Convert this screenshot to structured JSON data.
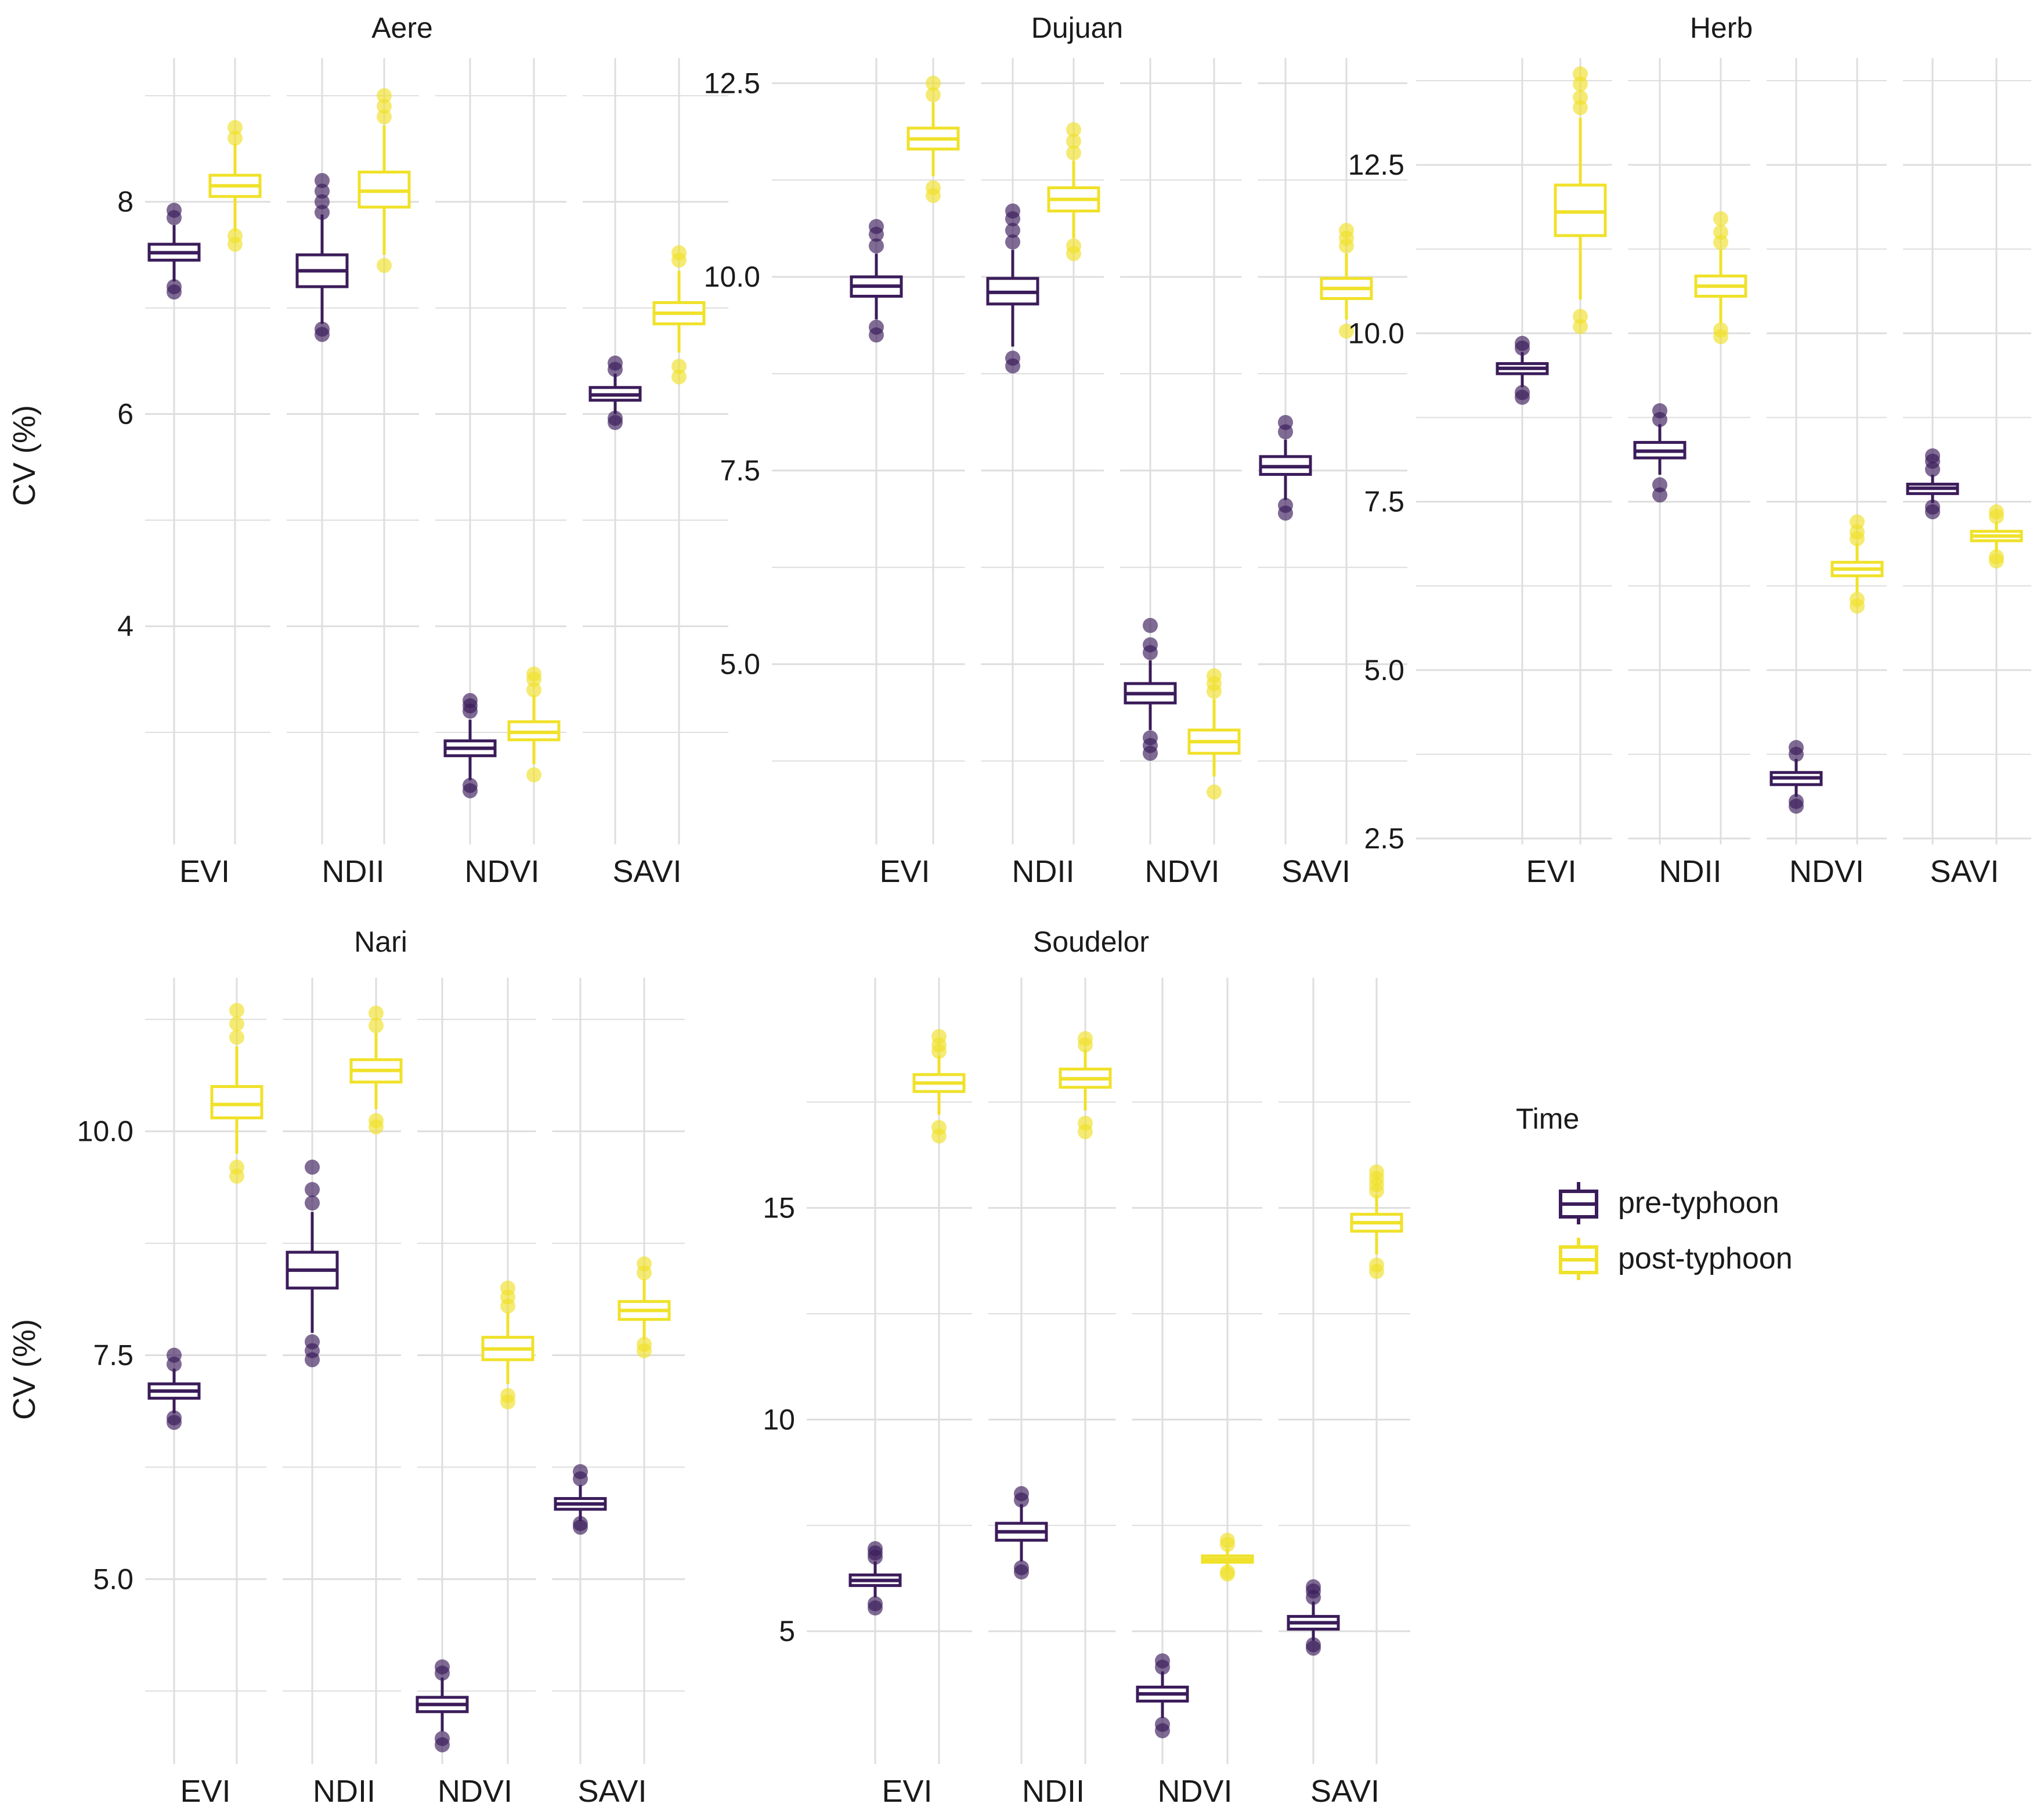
{
  "colors": {
    "pre": "#3b1c5a",
    "post": "#f0e12a",
    "grid": "#dedede"
  },
  "chart_data": [
    {
      "type": "box",
      "title": "Aere",
      "ylabel": "CV (%)",
      "categories": [
        "EVI",
        "NDII",
        "NDVI",
        "SAVI"
      ],
      "ylim": [
        2.0,
        9.3
      ],
      "yticks": [
        "4",
        "6",
        "8"
      ],
      "ytick_values": [
        4,
        6,
        8
      ],
      "minor_ticks": [
        3,
        5,
        7,
        9
      ],
      "series": [
        {
          "name": "pre-typhoon",
          "boxes": [
            {
              "q1": 7.45,
              "median": 7.52,
              "q3": 7.6,
              "wlo": 7.25,
              "whi": 7.78,
              "outliers": [
                7.15,
                7.2,
                7.85,
                7.92
              ]
            },
            {
              "q1": 7.2,
              "median": 7.35,
              "q3": 7.5,
              "wlo": 6.85,
              "whi": 7.88,
              "outliers": [
                6.75,
                6.8,
                7.9,
                8.0,
                8.1,
                8.2
              ]
            },
            {
              "q1": 2.78,
              "median": 2.85,
              "q3": 2.92,
              "wlo": 2.55,
              "whi": 3.12,
              "outliers": [
                2.45,
                2.5,
                3.2,
                3.25,
                3.3
              ]
            },
            {
              "q1": 6.13,
              "median": 6.18,
              "q3": 6.25,
              "wlo": 6.0,
              "whi": 6.38,
              "outliers": [
                5.92,
                5.96,
                6.42,
                6.48
              ]
            }
          ]
        },
        {
          "name": "post-typhoon",
          "boxes": [
            {
              "q1": 8.05,
              "median": 8.15,
              "q3": 8.25,
              "wlo": 7.72,
              "whi": 8.55,
              "outliers": [
                7.6,
                7.68,
                8.6,
                8.7
              ]
            },
            {
              "q1": 7.95,
              "median": 8.1,
              "q3": 8.28,
              "wlo": 7.5,
              "whi": 8.72,
              "outliers": [
                7.4,
                8.8,
                8.9,
                9.0
              ]
            },
            {
              "q1": 2.93,
              "median": 3.0,
              "q3": 3.1,
              "wlo": 2.7,
              "whi": 3.35,
              "outliers": [
                2.6,
                3.4,
                3.5,
                3.55
              ]
            },
            {
              "q1": 6.85,
              "median": 6.95,
              "q3": 7.05,
              "wlo": 6.58,
              "whi": 7.35,
              "outliers": [
                6.35,
                6.45,
                7.45,
                7.52
              ]
            }
          ]
        }
      ]
    },
    {
      "type": "box",
      "title": "Dujuan",
      "ylabel": "",
      "categories": [
        "EVI",
        "NDII",
        "NDVI",
        "SAVI"
      ],
      "ylim": [
        2.75,
        12.75
      ],
      "yticks": [
        "5.0",
        "7.5",
        "10.0",
        "12.5"
      ],
      "ytick_values": [
        5.0,
        7.5,
        10.0,
        12.5
      ],
      "minor_ticks": [
        3.75,
        6.25,
        8.75,
        11.25
      ],
      "series": [
        {
          "name": "pre-typhoon",
          "boxes": [
            {
              "q1": 9.75,
              "median": 9.88,
              "q3": 10.0,
              "wlo": 9.45,
              "whi": 10.3,
              "outliers": [
                9.25,
                9.35,
                10.4,
                10.55,
                10.65
              ]
            },
            {
              "q1": 9.65,
              "median": 9.8,
              "q3": 9.98,
              "wlo": 9.1,
              "whi": 10.35,
              "outliers": [
                8.85,
                8.95,
                10.45,
                10.6,
                10.75,
                10.85
              ]
            },
            {
              "q1": 4.5,
              "median": 4.62,
              "q3": 4.75,
              "wlo": 4.15,
              "whi": 5.05,
              "outliers": [
                3.85,
                3.95,
                4.05,
                5.15,
                5.25,
                5.5
              ]
            },
            {
              "q1": 7.45,
              "median": 7.55,
              "q3": 7.68,
              "wlo": 7.12,
              "whi": 7.9,
              "outliers": [
                6.95,
                7.05,
                8.0,
                8.12
              ]
            }
          ]
        },
        {
          "name": "post-typhoon",
          "boxes": [
            {
              "q1": 11.65,
              "median": 11.78,
              "q3": 11.92,
              "wlo": 11.3,
              "whi": 12.25,
              "outliers": [
                11.05,
                11.15,
                12.35,
                12.5
              ]
            },
            {
              "q1": 10.85,
              "median": 11.0,
              "q3": 11.15,
              "wlo": 10.5,
              "whi": 11.5,
              "outliers": [
                10.3,
                10.4,
                11.6,
                11.75,
                11.9
              ]
            },
            {
              "q1": 3.85,
              "median": 4.0,
              "q3": 4.15,
              "wlo": 3.55,
              "whi": 4.55,
              "outliers": [
                3.35,
                4.65,
                4.75,
                4.85
              ]
            },
            {
              "q1": 9.72,
              "median": 9.85,
              "q3": 9.98,
              "wlo": 9.45,
              "whi": 10.3,
              "outliers": [
                9.3,
                10.4,
                10.5,
                10.6
              ]
            }
          ]
        }
      ]
    },
    {
      "type": "box",
      "title": "Herb",
      "ylabel": "",
      "categories": [
        "EVI",
        "NDII",
        "NDVI",
        "SAVI"
      ],
      "ylim": [
        2.5,
        14.0
      ],
      "yticks": [
        "2.5",
        "5.0",
        "7.5",
        "10.0",
        "12.5"
      ],
      "ytick_values": [
        2.5,
        5.0,
        7.5,
        10.0,
        12.5
      ],
      "minor_ticks": [
        3.75,
        6.25,
        8.75,
        11.25,
        13.75
      ],
      "series": [
        {
          "name": "pre-typhoon",
          "boxes": [
            {
              "q1": 9.4,
              "median": 9.48,
              "q3": 9.55,
              "wlo": 9.2,
              "whi": 9.72,
              "outliers": [
                9.05,
                9.12,
                9.78,
                9.85
              ]
            },
            {
              "q1": 8.15,
              "median": 8.25,
              "q3": 8.38,
              "wlo": 7.9,
              "whi": 8.65,
              "outliers": [
                7.6,
                7.75,
                8.72,
                8.85
              ]
            },
            {
              "q1": 3.3,
              "median": 3.4,
              "q3": 3.48,
              "wlo": 3.12,
              "whi": 3.68,
              "outliers": [
                2.98,
                3.05,
                3.75,
                3.85
              ]
            },
            {
              "q1": 7.62,
              "median": 7.7,
              "q3": 7.76,
              "wlo": 7.48,
              "whi": 7.9,
              "outliers": [
                7.35,
                7.42,
                7.98,
                8.1,
                8.18
              ]
            }
          ]
        },
        {
          "name": "post-typhoon",
          "boxes": [
            {
              "q1": 11.45,
              "median": 11.8,
              "q3": 12.2,
              "wlo": 10.5,
              "whi": 13.2,
              "outliers": [
                10.1,
                10.25,
                13.35,
                13.5,
                13.7,
                13.85
              ]
            },
            {
              "q1": 10.55,
              "median": 10.7,
              "q3": 10.85,
              "wlo": 10.15,
              "whi": 11.25,
              "outliers": [
                9.95,
                10.05,
                11.35,
                11.5,
                11.7
              ]
            },
            {
              "q1": 6.4,
              "median": 6.5,
              "q3": 6.6,
              "wlo": 6.15,
              "whi": 6.88,
              "outliers": [
                5.95,
                6.05,
                6.95,
                7.05,
                7.2
              ]
            },
            {
              "q1": 6.92,
              "median": 6.99,
              "q3": 7.06,
              "wlo": 6.75,
              "whi": 7.2,
              "outliers": [
                6.62,
                6.68,
                7.28,
                7.35
              ]
            }
          ]
        }
      ]
    },
    {
      "type": "box",
      "title": "Nari",
      "ylabel": "CV (%)",
      "categories": [
        "EVI",
        "NDII",
        "NDVI",
        "SAVI"
      ],
      "ylim": [
        3.0,
        11.65
      ],
      "yticks": [
        "5.0",
        "7.5",
        "10.0"
      ],
      "ytick_values": [
        5.0,
        7.5,
        10.0
      ],
      "minor_ticks": [
        3.75,
        6.25,
        8.75,
        11.25
      ],
      "series": [
        {
          "name": "pre-typhoon",
          "boxes": [
            {
              "q1": 7.02,
              "median": 7.1,
              "q3": 7.18,
              "wlo": 6.85,
              "whi": 7.35,
              "outliers": [
                6.75,
                6.8,
                7.4,
                7.5
              ]
            },
            {
              "q1": 8.25,
              "median": 8.45,
              "q3": 8.65,
              "wlo": 7.75,
              "whi": 9.1,
              "outliers": [
                7.45,
                7.55,
                7.65,
                9.2,
                9.35,
                9.6
              ]
            },
            {
              "q1": 3.52,
              "median": 3.6,
              "q3": 3.68,
              "wlo": 3.3,
              "whi": 3.9,
              "outliers": [
                3.15,
                3.22,
                3.95,
                4.02
              ]
            },
            {
              "q1": 5.78,
              "median": 5.84,
              "q3": 5.9,
              "wlo": 5.65,
              "whi": 6.05,
              "outliers": [
                5.58,
                5.62,
                6.12,
                6.2
              ]
            }
          ]
        },
        {
          "name": "post-typhoon",
          "boxes": [
            {
              "q1": 10.15,
              "median": 10.3,
              "q3": 10.5,
              "wlo": 9.75,
              "whi": 10.95,
              "outliers": [
                9.5,
                9.6,
                11.05,
                11.2,
                11.35
              ]
            },
            {
              "q1": 10.55,
              "median": 10.68,
              "q3": 10.8,
              "wlo": 10.25,
              "whi": 11.1,
              "outliers": [
                10.05,
                10.12,
                11.18,
                11.32
              ]
            },
            {
              "q1": 7.45,
              "median": 7.57,
              "q3": 7.7,
              "wlo": 7.18,
              "whi": 7.98,
              "outliers": [
                6.98,
                7.05,
                8.05,
                8.15,
                8.25
              ]
            },
            {
              "q1": 7.9,
              "median": 8.0,
              "q3": 8.1,
              "wlo": 7.68,
              "whi": 8.35,
              "outliers": [
                7.55,
                7.62,
                8.42,
                8.52
              ]
            }
          ]
        }
      ]
    },
    {
      "type": "box",
      "title": "Soudelor",
      "ylabel": "",
      "categories": [
        "EVI",
        "NDII",
        "NDVI",
        "SAVI"
      ],
      "ylim": [
        2.0,
        20.3
      ],
      "yticks": [
        "5",
        "10",
        "15"
      ],
      "ytick_values": [
        5,
        10,
        15
      ],
      "minor_ticks": [
        7.5,
        12.5,
        17.5
      ],
      "series": [
        {
          "name": "pre-typhoon",
          "boxes": [
            {
              "q1": 6.08,
              "median": 6.2,
              "q3": 6.33,
              "wlo": 5.8,
              "whi": 6.65,
              "outliers": [
                5.55,
                5.65,
                6.75,
                6.85,
                6.95
              ]
            },
            {
              "q1": 7.15,
              "median": 7.35,
              "q3": 7.55,
              "wlo": 6.65,
              "whi": 8.0,
              "outliers": [
                6.4,
                6.5,
                8.1,
                8.25
              ]
            },
            {
              "q1": 3.35,
              "median": 3.52,
              "q3": 3.68,
              "wlo": 2.95,
              "whi": 4.05,
              "outliers": [
                2.65,
                2.8,
                4.15,
                4.3
              ]
            },
            {
              "q1": 5.05,
              "median": 5.2,
              "q3": 5.35,
              "wlo": 4.78,
              "whi": 5.7,
              "outliers": [
                4.6,
                4.68,
                5.8,
                5.95,
                6.05
              ]
            }
          ]
        },
        {
          "name": "post-typhoon",
          "boxes": [
            {
              "q1": 17.75,
              "median": 17.95,
              "q3": 18.15,
              "wlo": 17.2,
              "whi": 18.6,
              "outliers": [
                16.7,
                16.9,
                18.7,
                18.85,
                19.05
              ]
            },
            {
              "q1": 17.85,
              "median": 18.05,
              "q3": 18.28,
              "wlo": 17.3,
              "whi": 18.75,
              "outliers": [
                16.8,
                17.0,
                18.85,
                19.0
              ]
            },
            {
              "q1": 6.63,
              "median": 6.7,
              "q3": 6.78,
              "wlo": 6.45,
              "whi": 6.95,
              "outliers": [
                6.35,
                6.4,
                7.05,
                7.15
              ]
            },
            {
              "q1": 14.45,
              "median": 14.65,
              "q3": 14.85,
              "wlo": 13.9,
              "whi": 15.3,
              "outliers": [
                13.5,
                13.65,
                15.4,
                15.55,
                15.7,
                15.85
              ]
            }
          ]
        }
      ]
    }
  ],
  "legend": {
    "title": "Time",
    "items": [
      {
        "label": "pre-typhoon",
        "color": "#3b1c5a"
      },
      {
        "label": "post-typhoon",
        "color": "#f0e12a"
      }
    ]
  }
}
